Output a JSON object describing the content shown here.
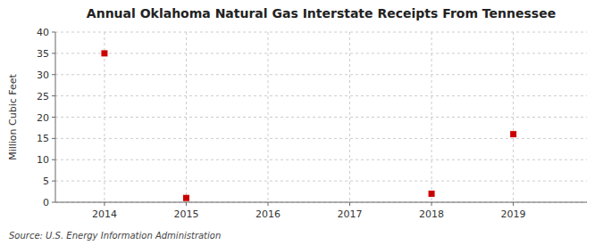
{
  "chart_data": {
    "type": "scatter",
    "title": "Annual Oklahoma Natural Gas Interstate Receipts From Tennessee",
    "y_label": "Million Cubic Feet",
    "annotations": [
      "Source: U.S. Energy Information Administration"
    ],
    "x": [
      2014,
      2015,
      2016,
      2017,
      2018,
      2019
    ],
    "values": [
      35,
      1,
      null,
      null,
      2,
      16
    ],
    "color": "#cc0000",
    "marker": "square",
    "xlim": [
      2013.4,
      2019.9
    ],
    "xticks": [
      2014,
      2015,
      2016,
      2017,
      2018,
      2019
    ],
    "ylim": [
      0,
      40
    ],
    "yticks": [
      0,
      5,
      10,
      15,
      20,
      25,
      30,
      35,
      40
    ],
    "grid": true
  }
}
